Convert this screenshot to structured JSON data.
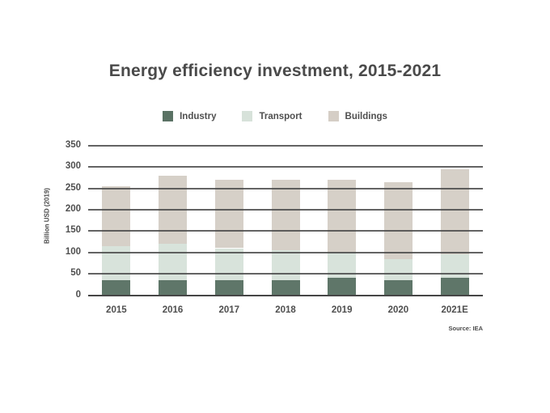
{
  "title": "Energy efficiency investment, 2015-2021",
  "y_axis_title": "Billion USD (2019)",
  "source": "Source: IEA",
  "colors": {
    "industry": "#5a7264",
    "transport": "#d7e2da",
    "buildings": "#d5cec6",
    "grid": "#4a4a4a"
  },
  "legend": {
    "items": [
      {
        "label": "Industry",
        "color": "#5a7264"
      },
      {
        "label": "Transport",
        "color": "#d7e2da"
      },
      {
        "label": "Buildings",
        "color": "#d5cec6"
      }
    ]
  },
  "chart_data": {
    "type": "bar",
    "stacked": true,
    "title": "Energy efficiency investment, 2015-2021",
    "categories": [
      "2015",
      "2016",
      "2017",
      "2018",
      "2019",
      "2020",
      "2021E"
    ],
    "series": [
      {
        "name": "Industry",
        "color": "#5a7264",
        "values": [
          35,
          35,
          35,
          35,
          40,
          35,
          40
        ]
      },
      {
        "name": "Transport",
        "color": "#d7e2da",
        "values": [
          80,
          85,
          75,
          70,
          60,
          50,
          55
        ]
      },
      {
        "name": "Buildings",
        "color": "#d5cec6",
        "values": [
          140,
          160,
          160,
          165,
          170,
          180,
          200
        ]
      }
    ],
    "totals": [
      255,
      280,
      270,
      270,
      270,
      265,
      295
    ],
    "xlabel": "",
    "ylabel": "Billion USD (2019)",
    "ylim": [
      0,
      350
    ],
    "yticks": [
      0,
      50,
      100,
      150,
      200,
      250,
      300,
      350
    ],
    "grid": true,
    "legend_position": "top",
    "source": "Source: IEA"
  }
}
